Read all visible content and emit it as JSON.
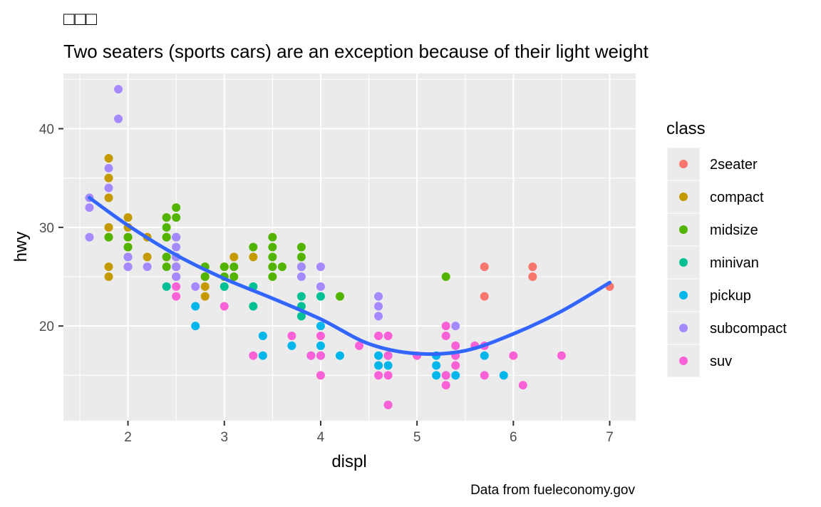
{
  "chart_data": {
    "type": "scatter",
    "title": "□□□",
    "subtitle": "Two seaters (sports cars) are an exception because of their light weight",
    "caption": "Data from fueleconomy.gov",
    "xlabel": "displ",
    "ylabel": "hwy",
    "xlim": [
      1.33,
      7.27
    ],
    "ylim": [
      10.4,
      45.6
    ],
    "x_ticks": [
      2,
      3,
      4,
      5,
      6,
      7
    ],
    "x_tick_labels": [
      "2",
      "3",
      "4",
      "5",
      "6",
      "7"
    ],
    "y_ticks": [
      20,
      30,
      40
    ],
    "y_tick_labels": [
      "20",
      "30",
      "40"
    ],
    "grid": true,
    "legend": {
      "title": "class",
      "position": "right",
      "entries": [
        {
          "name": "2seater",
          "color": "#F8766D"
        },
        {
          "name": "compact",
          "color": "#C49A00"
        },
        {
          "name": "midsize",
          "color": "#53B400"
        },
        {
          "name": "minivan",
          "color": "#00C094"
        },
        {
          "name": "pickup",
          "color": "#00B6EB"
        },
        {
          "name": "subcompact",
          "color": "#A58AFF"
        },
        {
          "name": "suv",
          "color": "#FB61D7"
        }
      ]
    },
    "series": [
      {
        "name": "2seater",
        "color": "#F8766D",
        "points": [
          [
            5.7,
            26
          ],
          [
            5.7,
            23
          ],
          [
            6.2,
            26
          ],
          [
            6.2,
            25
          ],
          [
            7.0,
            24
          ]
        ]
      },
      {
        "name": "compact",
        "color": "#C49A00",
        "points": [
          [
            1.8,
            37
          ],
          [
            1.8,
            35
          ],
          [
            1.8,
            33
          ],
          [
            1.8,
            30
          ],
          [
            1.8,
            29
          ],
          [
            1.8,
            26
          ],
          [
            1.8,
            25
          ],
          [
            2.0,
            31
          ],
          [
            2.0,
            30
          ],
          [
            2.0,
            29
          ],
          [
            2.0,
            28
          ],
          [
            2.0,
            26
          ],
          [
            2.2,
            29
          ],
          [
            2.2,
            27
          ],
          [
            2.4,
            31
          ],
          [
            2.4,
            29
          ],
          [
            2.4,
            27
          ],
          [
            2.5,
            27
          ],
          [
            2.5,
            26
          ],
          [
            2.5,
            25
          ],
          [
            2.8,
            26
          ],
          [
            2.8,
            25
          ],
          [
            2.8,
            24
          ],
          [
            2.8,
            23
          ],
          [
            3.0,
            26
          ],
          [
            3.1,
            27
          ],
          [
            3.3,
            27
          ]
        ]
      },
      {
        "name": "midsize",
        "color": "#53B400",
        "points": [
          [
            1.8,
            29
          ],
          [
            2.0,
            29
          ],
          [
            2.0,
            28
          ],
          [
            2.0,
            27
          ],
          [
            2.4,
            31
          ],
          [
            2.4,
            30
          ],
          [
            2.4,
            29
          ],
          [
            2.4,
            27
          ],
          [
            2.4,
            26
          ],
          [
            2.5,
            32
          ],
          [
            2.5,
            31
          ],
          [
            2.5,
            29
          ],
          [
            2.5,
            27
          ],
          [
            2.5,
            26
          ],
          [
            2.8,
            26
          ],
          [
            2.8,
            25
          ],
          [
            3.0,
            26
          ],
          [
            3.0,
            25
          ],
          [
            3.1,
            26
          ],
          [
            3.1,
            25
          ],
          [
            3.3,
            28
          ],
          [
            3.5,
            29
          ],
          [
            3.5,
            28
          ],
          [
            3.5,
            27
          ],
          [
            3.5,
            26
          ],
          [
            3.5,
            25
          ],
          [
            3.6,
            26
          ],
          [
            3.8,
            28
          ],
          [
            3.8,
            27
          ],
          [
            3.8,
            26
          ],
          [
            4.2,
            23
          ],
          [
            5.3,
            25
          ]
        ]
      },
      {
        "name": "minivan",
        "color": "#00C094",
        "points": [
          [
            2.4,
            24
          ],
          [
            3.0,
            24
          ],
          [
            3.3,
            24
          ],
          [
            3.3,
            22
          ],
          [
            3.8,
            23
          ],
          [
            3.8,
            22
          ],
          [
            3.8,
            21
          ],
          [
            4.0,
            23
          ]
        ]
      },
      {
        "name": "pickup",
        "color": "#00B6EB",
        "points": [
          [
            2.7,
            22
          ],
          [
            2.7,
            20
          ],
          [
            3.4,
            19
          ],
          [
            3.4,
            17
          ],
          [
            3.7,
            18
          ],
          [
            3.9,
            17
          ],
          [
            4.0,
            20
          ],
          [
            4.0,
            18
          ],
          [
            4.0,
            17
          ],
          [
            4.2,
            17
          ],
          [
            4.6,
            17
          ],
          [
            4.6,
            16
          ],
          [
            4.7,
            17
          ],
          [
            4.7,
            16
          ],
          [
            4.7,
            12
          ],
          [
            5.2,
            17
          ],
          [
            5.2,
            16
          ],
          [
            5.2,
            15
          ],
          [
            5.3,
            15
          ],
          [
            5.4,
            15
          ],
          [
            5.7,
            17
          ],
          [
            5.9,
            15
          ]
        ]
      },
      {
        "name": "subcompact",
        "color": "#A58AFF",
        "points": [
          [
            1.6,
            33
          ],
          [
            1.6,
            32
          ],
          [
            1.6,
            29
          ],
          [
            1.8,
            36
          ],
          [
            1.8,
            34
          ],
          [
            1.9,
            44
          ],
          [
            1.9,
            41
          ],
          [
            2.0,
            27
          ],
          [
            2.0,
            26
          ],
          [
            2.2,
            26
          ],
          [
            2.5,
            29
          ],
          [
            2.5,
            28
          ],
          [
            2.5,
            27
          ],
          [
            2.5,
            26
          ],
          [
            2.5,
            25
          ],
          [
            2.7,
            24
          ],
          [
            3.8,
            26
          ],
          [
            3.8,
            25
          ],
          [
            4.0,
            26
          ],
          [
            4.0,
            24
          ],
          [
            4.6,
            23
          ],
          [
            4.6,
            22
          ],
          [
            4.6,
            21
          ],
          [
            5.4,
            20
          ]
        ]
      },
      {
        "name": "suv",
        "color": "#FB61D7",
        "points": [
          [
            2.5,
            24
          ],
          [
            2.5,
            23
          ],
          [
            3.0,
            22
          ],
          [
            3.3,
            17
          ],
          [
            3.7,
            19
          ],
          [
            3.9,
            17
          ],
          [
            4.0,
            19
          ],
          [
            4.0,
            17
          ],
          [
            4.0,
            15
          ],
          [
            4.4,
            18
          ],
          [
            4.6,
            19
          ],
          [
            4.6,
            15
          ],
          [
            4.7,
            19
          ],
          [
            4.7,
            17
          ],
          [
            4.7,
            15
          ],
          [
            4.7,
            12
          ],
          [
            5.0,
            17
          ],
          [
            5.3,
            20
          ],
          [
            5.3,
            19
          ],
          [
            5.3,
            15
          ],
          [
            5.3,
            14
          ],
          [
            5.4,
            18
          ],
          [
            5.4,
            17
          ],
          [
            5.4,
            16
          ],
          [
            5.6,
            18
          ],
          [
            5.7,
            18
          ],
          [
            5.7,
            15
          ],
          [
            6.0,
            17
          ],
          [
            6.1,
            14
          ],
          [
            6.5,
            17
          ]
        ]
      }
    ],
    "smooth": {
      "color": "#3366FF",
      "method": "loess",
      "points": [
        [
          1.6,
          33.0
        ],
        [
          2.0,
          30.2
        ],
        [
          2.5,
          27.2
        ],
        [
          3.0,
          24.8
        ],
        [
          3.5,
          22.8
        ],
        [
          4.0,
          20.7
        ],
        [
          4.5,
          18.2
        ],
        [
          5.0,
          17.2
        ],
        [
          5.5,
          17.5
        ],
        [
          6.0,
          19.2
        ],
        [
          6.5,
          21.5
        ],
        [
          7.0,
          24.4
        ]
      ]
    }
  }
}
